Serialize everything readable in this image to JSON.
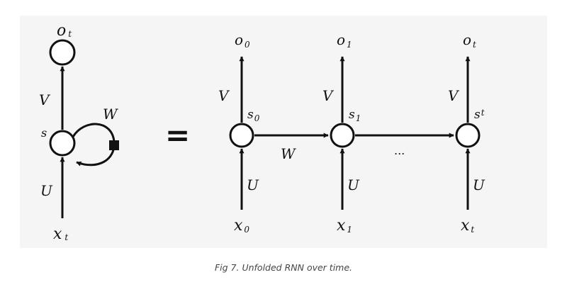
{
  "caption": "Fig 7. Unfolded RNN over time.",
  "rolled": {
    "output_label": "o",
    "output_sub": "t",
    "state_label": "s",
    "input_label": "x",
    "input_sub": "t",
    "weight_u": "U",
    "weight_v": "V",
    "weight_w": "W"
  },
  "equals": "=",
  "unrolled": {
    "steps": [
      {
        "output_label": "o",
        "output_sub": "0",
        "state_label": "s",
        "state_sub": "0",
        "input_label": "x",
        "input_sub": "0",
        "weight_u": "U",
        "weight_v": "V"
      },
      {
        "output_label": "o",
        "output_sub": "1",
        "state_label": "s",
        "state_sub": "1",
        "input_label": "x",
        "input_sub": "1",
        "weight_u": "U",
        "weight_v": "V"
      },
      {
        "output_label": "o",
        "output_sub": "t",
        "state_label": "s",
        "state_sub": "t",
        "input_label": "x",
        "input_sub": "t",
        "weight_u": "U",
        "weight_v": "V"
      }
    ],
    "transition_label": "W",
    "ellipsis": "..."
  }
}
